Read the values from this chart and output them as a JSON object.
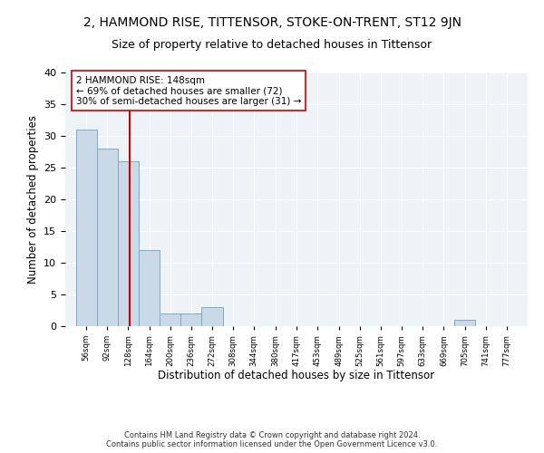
{
  "title": "2, HAMMOND RISE, TITTENSOR, STOKE-ON-TRENT, ST12 9JN",
  "subtitle": "Size of property relative to detached houses in Tittensor",
  "xlabel": "Distribution of detached houses by size in Tittensor",
  "ylabel": "Number of detached properties",
  "bin_labels": [
    "56sqm",
    "92sqm",
    "128sqm",
    "164sqm",
    "200sqm",
    "236sqm",
    "272sqm",
    "308sqm",
    "344sqm",
    "380sqm",
    "417sqm",
    "453sqm",
    "489sqm",
    "525sqm",
    "561sqm",
    "597sqm",
    "633sqm",
    "669sqm",
    "705sqm",
    "741sqm",
    "777sqm"
  ],
  "bin_edges": [
    56,
    92,
    128,
    164,
    200,
    236,
    272,
    308,
    344,
    380,
    417,
    453,
    489,
    525,
    561,
    597,
    633,
    669,
    705,
    741,
    777
  ],
  "bar_heights": [
    31,
    28,
    26,
    12,
    2,
    2,
    3,
    0,
    0,
    0,
    0,
    0,
    0,
    0,
    0,
    0,
    0,
    0,
    1,
    0
  ],
  "bar_color": "#c9d9e8",
  "bar_edgecolor": "#7aaac8",
  "vline_x": 148,
  "vline_color": "#cc0000",
  "annotation_text": "2 HAMMOND RISE: 148sqm\n← 69% of detached houses are smaller (72)\n30% of semi-detached houses are larger (31) →",
  "annotation_box_color": "#ffffff",
  "annotation_box_edgecolor": "#cc0000",
  "ylim": [
    0,
    40
  ],
  "yticks": [
    0,
    5,
    10,
    15,
    20,
    25,
    30,
    35,
    40
  ],
  "background_color": "#eef3f8",
  "grid_color": "#ffffff",
  "footer_line1": "Contains HM Land Registry data © Crown copyright and database right 2024.",
  "footer_line2": "Contains public sector information licensed under the Open Government Licence v3.0.",
  "title_fontsize": 10,
  "subtitle_fontsize": 9,
  "xlabel_fontsize": 8.5,
  "ylabel_fontsize": 8.5,
  "annotation_fontsize": 7.5
}
